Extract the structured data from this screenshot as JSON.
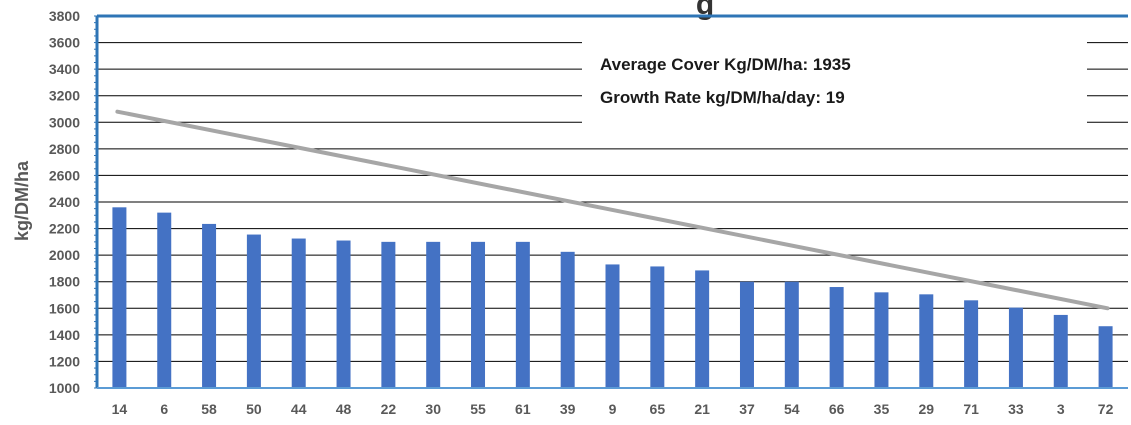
{
  "chart_data": {
    "type": "bar",
    "title_fragment": "g",
    "ylabel": "kg/DM/ha",
    "xlabel": "",
    "ylim": [
      1000,
      3800
    ],
    "ytick_step": 200,
    "grid": true,
    "categories": [
      "14",
      "6",
      "58",
      "50",
      "44",
      "48",
      "22",
      "30",
      "55",
      "61",
      "39",
      "9",
      "65",
      "21",
      "37",
      "54",
      "66",
      "35",
      "29",
      "71",
      "33",
      "3",
      "72"
    ],
    "series": [
      {
        "type": "bar",
        "values": [
          2360,
          2320,
          2235,
          2155,
          2125,
          2110,
          2100,
          2100,
          2100,
          2100,
          2025,
          1930,
          1915,
          1885,
          1800,
          1800,
          1760,
          1720,
          1705,
          1660,
          1605,
          1550,
          1465
        ]
      },
      {
        "type": "line",
        "start": {
          "category": "14",
          "value": 3080
        },
        "end": {
          "category": "72",
          "value": 1600
        }
      }
    ],
    "annotations": [
      "Average Cover Kg/DM/ha: 1935",
      "Growth Rate kg/DM/ha/day: 19"
    ],
    "colors": {
      "bar": "#4472C4",
      "target_line": "#A6A6A6",
      "plot_border": "#2E75B6",
      "grid": "#000000",
      "baseline": "#5B9BD5"
    }
  }
}
